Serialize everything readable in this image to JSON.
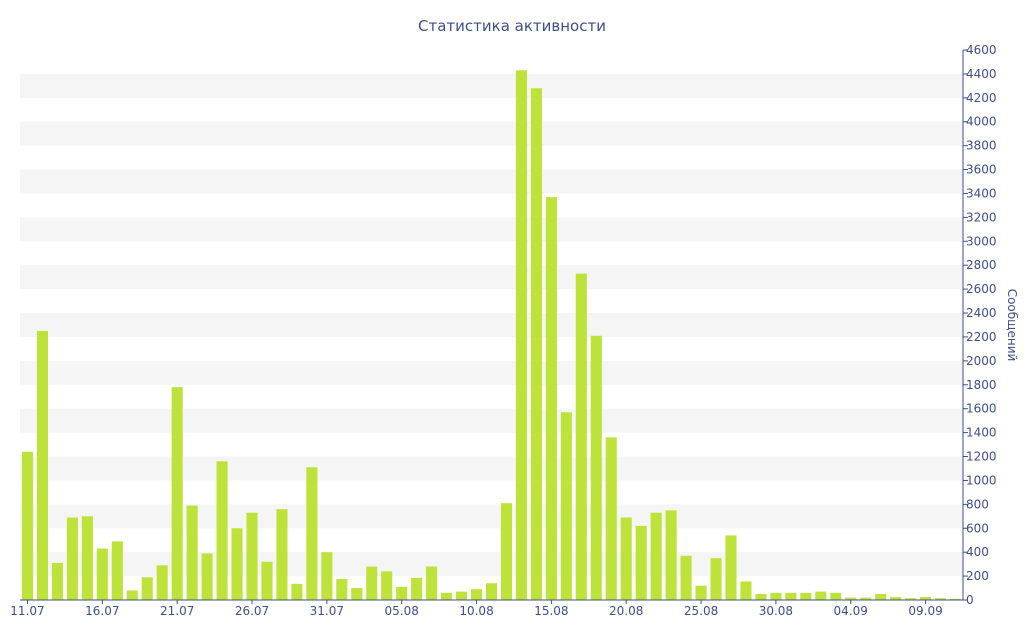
{
  "chart_data": {
    "type": "bar",
    "title": "Статистика активности",
    "xlabel": "",
    "ylabel": "Сообщений",
    "ylim": [
      0,
      4600
    ],
    "yticks": [
      0,
      200,
      400,
      600,
      800,
      1000,
      1200,
      1400,
      1600,
      1800,
      2000,
      2200,
      2400,
      2600,
      2800,
      3000,
      3200,
      3400,
      3600,
      3800,
      4000,
      4200,
      4400,
      4600
    ],
    "x_tick_labels": [
      "11.07",
      "16.07",
      "21.07",
      "26.07",
      "31.07",
      "05.08",
      "10.08",
      "15.08",
      "20.08",
      "25.08",
      "30.08",
      "04.09",
      "09.09"
    ],
    "grid": "alternating horizontal bands",
    "y_axis_position": "right",
    "colors": {
      "bar": "#bde23a",
      "band": "#f5f5f5",
      "axis": "#3e4f87"
    },
    "categories": [
      "11.07",
      "12.07",
      "13.07",
      "14.07",
      "15.07",
      "16.07",
      "17.07",
      "18.07",
      "19.07",
      "20.07",
      "21.07",
      "22.07",
      "23.07",
      "24.07",
      "25.07",
      "26.07",
      "27.07",
      "28.07",
      "29.07",
      "30.07",
      "31.07",
      "01.08",
      "02.08",
      "03.08",
      "04.08",
      "05.08",
      "06.08",
      "07.08",
      "08.08",
      "09.08",
      "10.08",
      "11.08",
      "12.08",
      "13.08",
      "14.08",
      "15.08",
      "16.08",
      "17.08",
      "18.08",
      "19.08",
      "20.08",
      "21.08",
      "22.08",
      "23.08",
      "24.08",
      "25.08",
      "26.08",
      "27.08",
      "28.08",
      "29.08",
      "30.08",
      "31.08",
      "01.09",
      "02.09",
      "03.09",
      "04.09",
      "05.09",
      "06.09",
      "07.09",
      "08.09",
      "09.09",
      "10.09",
      "11.09"
    ],
    "values": [
      1240,
      2250,
      310,
      690,
      700,
      430,
      490,
      80,
      190,
      290,
      1780,
      790,
      390,
      1160,
      600,
      730,
      320,
      760,
      135,
      1110,
      400,
      175,
      100,
      280,
      240,
      110,
      185,
      280,
      60,
      70,
      90,
      140,
      810,
      4430,
      4280,
      3370,
      1570,
      2730,
      2210,
      1360,
      690,
      620,
      730,
      750,
      370,
      120,
      350,
      540,
      155,
      50,
      60,
      60,
      60,
      70,
      60,
      20,
      20,
      50,
      25,
      15,
      25,
      15,
      10
    ]
  }
}
